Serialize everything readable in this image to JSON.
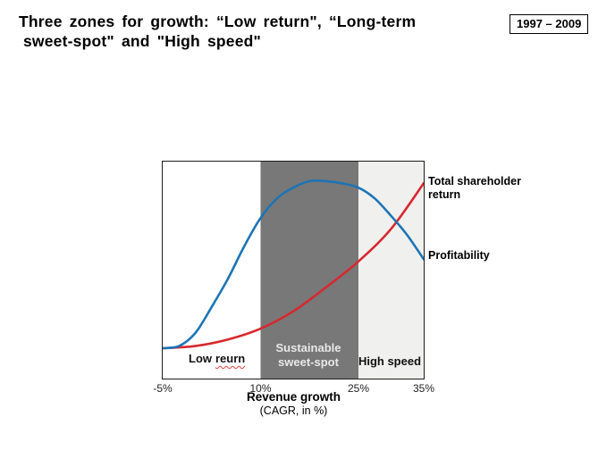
{
  "slide": {
    "title": {
      "line1": "Three zones for growth: “Low return\", “Long-term",
      "line2": "sweet-spot\" and \"High speed\""
    },
    "period_badge": "1997 – 2009"
  },
  "chart": {
    "zone_labels": {
      "low": {
        "word1": "Low",
        "word2": "reurn"
      },
      "sweet_spot_line1": "Sustainable",
      "sweet_spot_line2": "sweet-spot",
      "high": "High speed"
    },
    "series_labels": {
      "tsr": "Total shareholder return",
      "profitability": "Profitability"
    },
    "x_axis": {
      "title": "Revenue growth",
      "subtitle": "(CAGR, in %)"
    }
  },
  "colors": {
    "tsr_red": "#d7282f",
    "profitability_blue": "#1d74b5",
    "sweet_spot_gray": "#787878",
    "high_speed_gray": "#f0f0ee",
    "plot_border": "#1b1b1b",
    "misspell_squiggle": "#e04040"
  },
  "chart_data": {
    "type": "line",
    "title": "Three zones for growth: \"Low return\", \"Long-term sweet-spot\" and \"High speed\"",
    "period": "1997 – 2009",
    "xlabel": "Revenue growth (CAGR, in %)",
    "ylabel": "",
    "x_range": [
      -5,
      35
    ],
    "x_ticks": [
      -5,
      10,
      25,
      35
    ],
    "x_tick_labels": [
      "-5%",
      "10%",
      "25%",
      "35%"
    ],
    "y_range": [
      0,
      100
    ],
    "y_axis_shown": false,
    "grid": false,
    "legend_position": "right of plot, aligned to curve endpoints",
    "zones": [
      {
        "name": "Low reurn",
        "from": -5,
        "to": 10,
        "fill": "#ffffff",
        "label_color": "#111111"
      },
      {
        "name": "Sustainable sweet-spot",
        "from": 10,
        "to": 25,
        "fill": "#787878",
        "label_color": "#e8e8e8"
      },
      {
        "name": "High speed",
        "from": 25,
        "to": 35,
        "fill": "#f0f0ee",
        "label_color": "#111111"
      }
    ],
    "series": [
      {
        "name": "Total shareholder return",
        "color": "#d7282f",
        "x": [
          -5,
          0,
          5,
          10,
          15,
          20,
          25,
          30,
          35
        ],
        "y": [
          14,
          15,
          18,
          23,
          31,
          42,
          54,
          69,
          90
        ]
      },
      {
        "name": "Profitability",
        "color": "#1d74b5",
        "x": [
          -5,
          -2.5,
          0,
          2.5,
          5,
          7.5,
          10,
          12.5,
          15,
          17.5,
          20,
          22.5,
          25,
          27.5,
          30,
          32.5,
          35
        ],
        "y": [
          14,
          15,
          21,
          33,
          46,
          61,
          74,
          83,
          88,
          91,
          91,
          90,
          88,
          83,
          75,
          66,
          55
        ]
      }
    ]
  }
}
